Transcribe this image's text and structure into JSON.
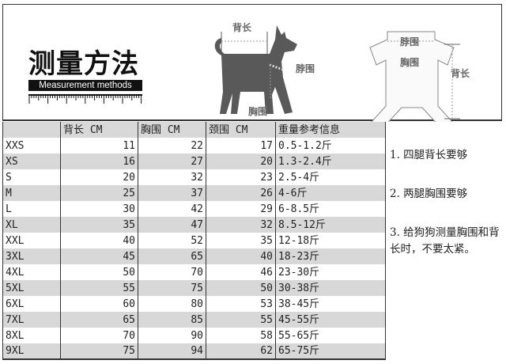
{
  "header": {
    "logo_title": "测量方法",
    "logo_subtitle": "Measurement methods",
    "dog_labels": {
      "back": "背长",
      "neck": "脖围",
      "chest": "胸围"
    },
    "clothes_labels": {
      "neck": "脖围",
      "chest": "胸围",
      "back": "背长"
    }
  },
  "table": {
    "columns": [
      "",
      "背长 CM",
      "胸围 CM",
      "颈围 CM",
      "重量参考信息"
    ],
    "rows": [
      [
        "XXS",
        "11",
        "22",
        "17",
        "0.5-1.2斤"
      ],
      [
        "XS",
        "16",
        "27",
        "20",
        "1.3-2.4斤"
      ],
      [
        "S",
        "20",
        "32",
        "23",
        "2.5-4斤"
      ],
      [
        "M",
        "25",
        "37",
        "26",
        "4-6斤"
      ],
      [
        "L",
        "30",
        "42",
        "29",
        "6-8.5斤"
      ],
      [
        "XL",
        "35",
        "47",
        "32",
        "8.5-12斤"
      ],
      [
        "XXL",
        "40",
        "52",
        "35",
        "12-18斤"
      ],
      [
        "3XL",
        "45",
        "65",
        "40",
        "18-23斤"
      ],
      [
        "4XL",
        "50",
        "70",
        "46",
        "23-30斤"
      ],
      [
        "5XL",
        "55",
        "75",
        "50",
        "30-38斤"
      ],
      [
        "6XL",
        "60",
        "80",
        "53",
        "38-45斤"
      ],
      [
        "7XL",
        "65",
        "85",
        "55",
        "45-55斤"
      ],
      [
        "8XL",
        "70",
        "90",
        "58",
        "55-65斤"
      ],
      [
        "9XL",
        "75",
        "94",
        "62",
        "65-75斤"
      ]
    ]
  },
  "notes": [
    "1. 四腿背长要够",
    "2. 两腿胸围要够",
    "3. 给狗狗测量胸围和背长时，不要太紧。"
  ]
}
